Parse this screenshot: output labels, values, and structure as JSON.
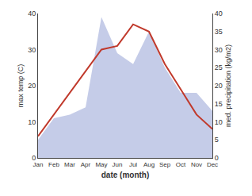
{
  "chart_data": {
    "type": "line",
    "xlabel": "date (month)",
    "ylabel": "max temp (C)",
    "y2label": "med. precipitation (kg/m2)",
    "categories": [
      "Jan",
      "Feb",
      "Mar",
      "Apr",
      "May",
      "Jun",
      "Jul",
      "Aug",
      "Sep",
      "Oct",
      "Nov",
      "Dec"
    ],
    "series": [
      {
        "type": "area",
        "axis": "y2",
        "color": "#c5cce8",
        "values": [
          5,
          11,
          12,
          14,
          39,
          29,
          26,
          35,
          25,
          18,
          18,
          13
        ]
      },
      {
        "type": "line",
        "color": "#c0392b",
        "values": [
          6,
          12,
          18,
          24,
          30,
          31,
          37,
          35,
          26,
          19,
          12,
          8
        ]
      }
    ],
    "ylim": [
      0,
      40
    ],
    "yticks": [
      0,
      10,
      20,
      30,
      40
    ],
    "y2lim": [
      0,
      40
    ],
    "y2ticks": [
      0,
      5,
      10,
      15,
      20,
      25,
      30,
      35,
      40
    ],
    "grid": false
  }
}
